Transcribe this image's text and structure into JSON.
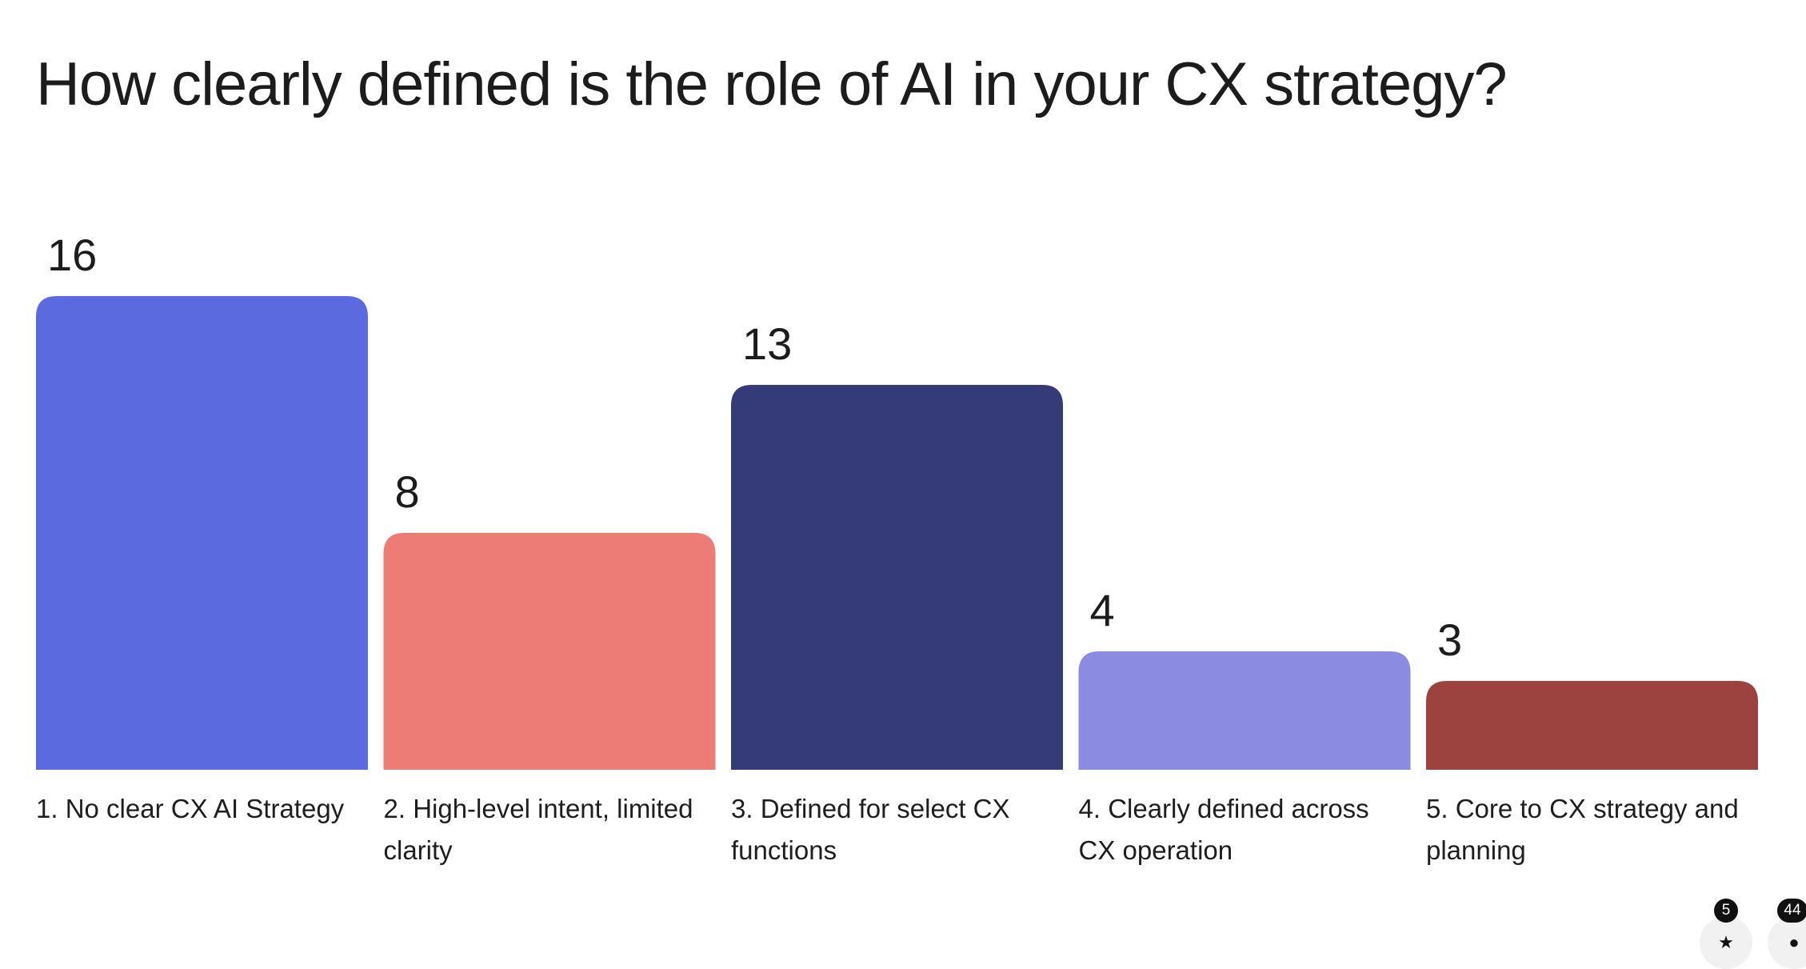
{
  "title": "How clearly defined is the role of AI in your CX strategy?",
  "chart_data": {
    "type": "bar",
    "title": "How clearly defined is the role of AI in your CX strategy?",
    "categories": [
      "1. No clear CX AI Strategy",
      "2. High-level intent, limited clarity",
      "3. Defined for select CX functions",
      "4. Clearly defined across CX operation",
      "5. Core to CX strategy and planning"
    ],
    "values": [
      16,
      8,
      13,
      4,
      3
    ],
    "colors": [
      "#5b6ade",
      "#ee7c76",
      "#353a78",
      "#8b8ce1",
      "#9c4340"
    ],
    "data_labels": [
      "16",
      "8",
      "13",
      "4",
      "3"
    ],
    "ylim": [
      0,
      16
    ],
    "grid": false,
    "legend": "none"
  },
  "controls": {
    "reactions_badge": "5",
    "reactions_icon": "star-icon",
    "participants_badge": "44",
    "participants_icon": "person-icon"
  }
}
